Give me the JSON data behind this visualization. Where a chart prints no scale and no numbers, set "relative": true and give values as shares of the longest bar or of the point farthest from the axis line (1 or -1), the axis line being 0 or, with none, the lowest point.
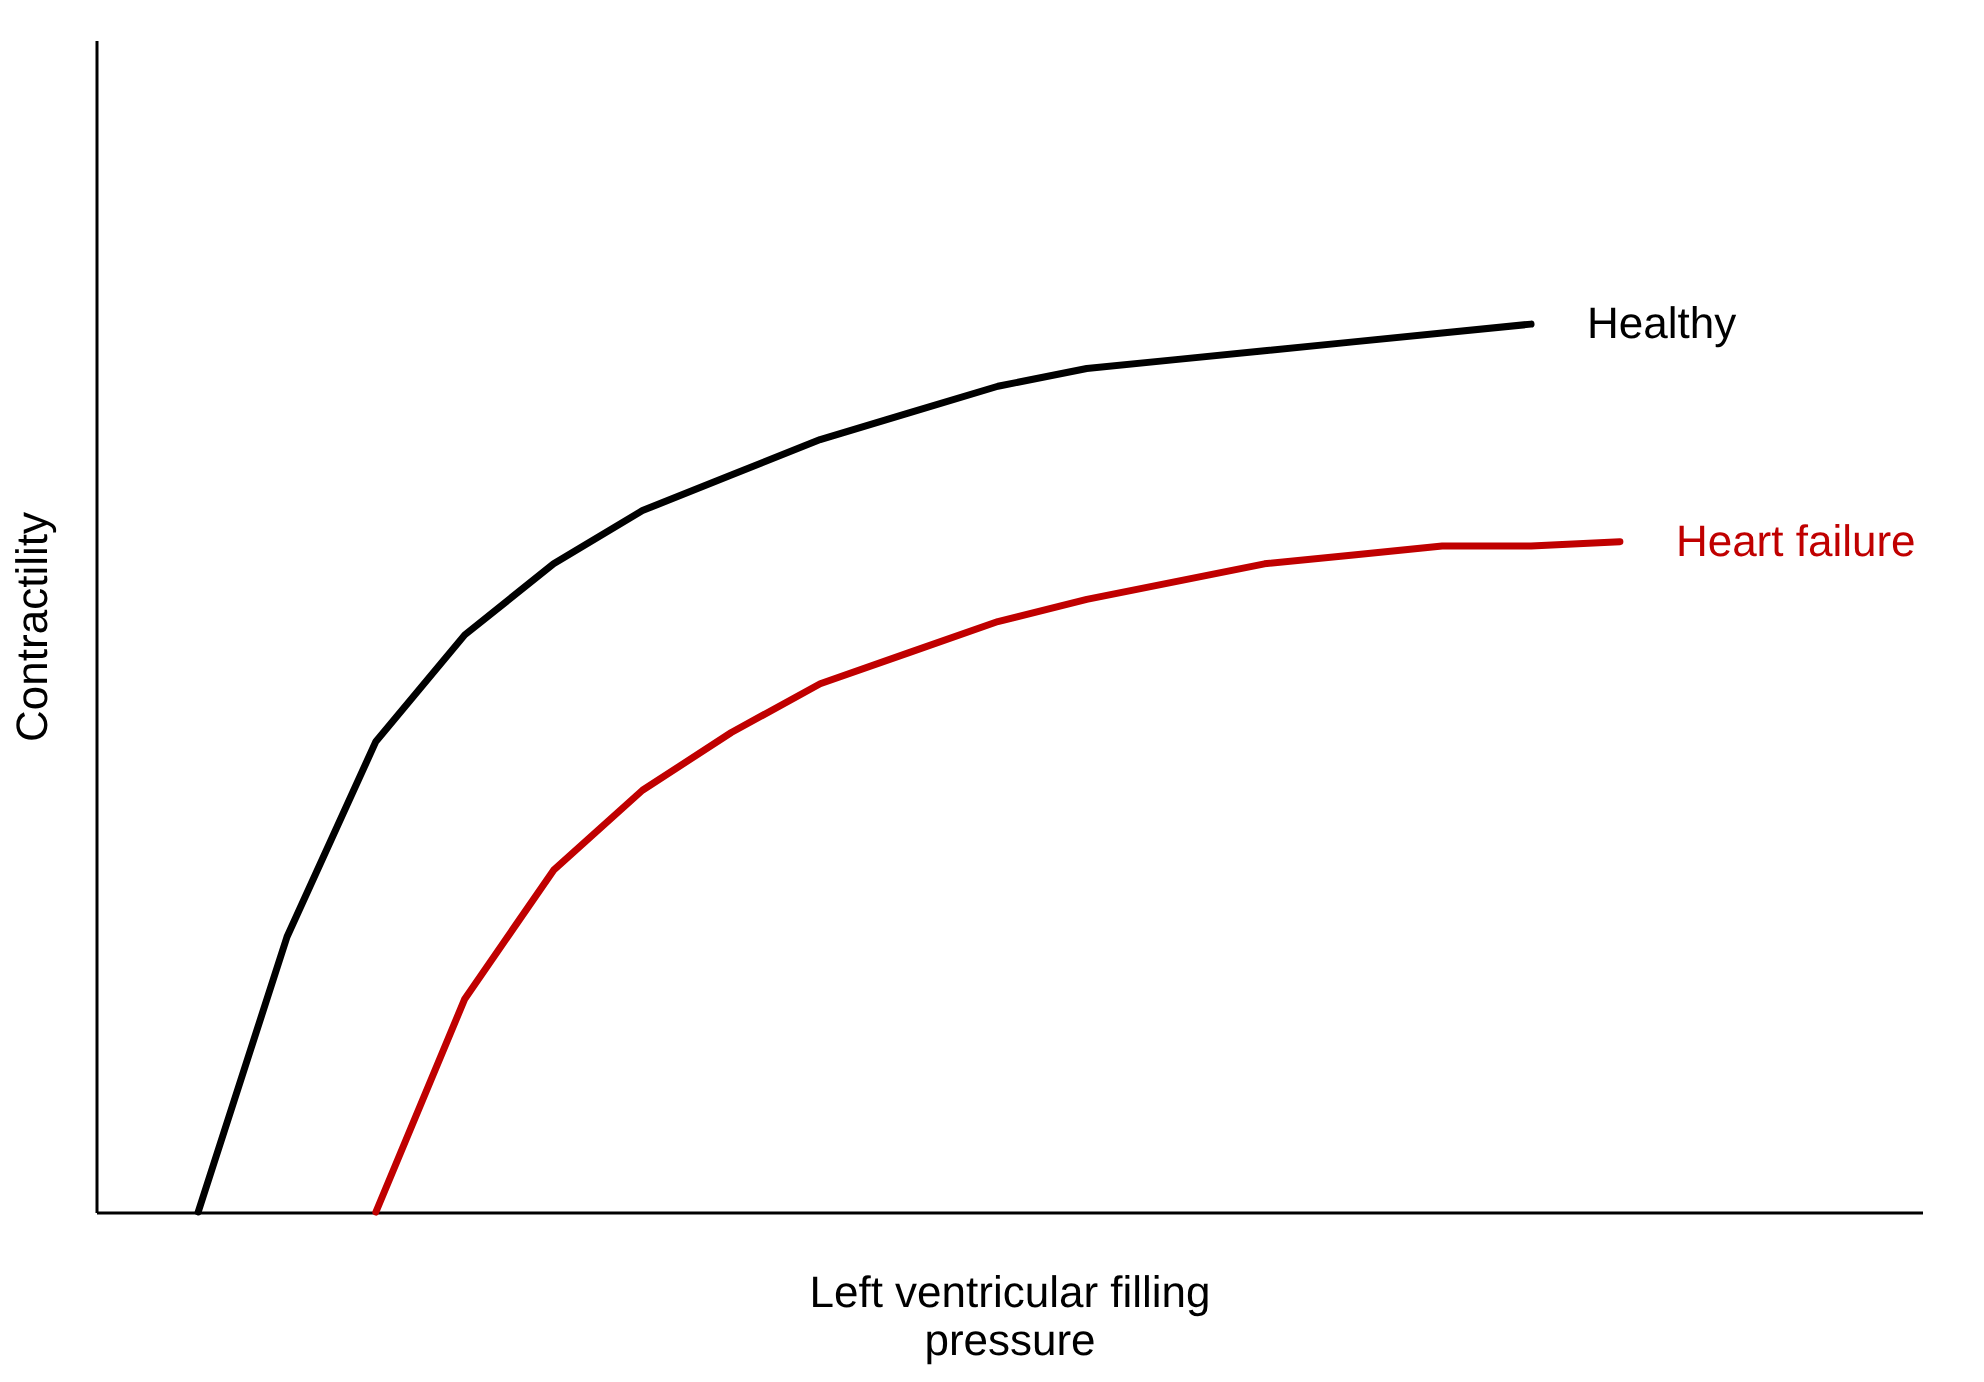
{
  "chart_data": {
    "type": "line",
    "xlabel": "Left ventricular filling pressure",
    "ylabel": "Contractility",
    "relative": true,
    "line_style": "solid",
    "categories": [
      null,
      null,
      null,
      null,
      null,
      null,
      null,
      null,
      null,
      null,
      null,
      null,
      null,
      null,
      null,
      null,
      null
    ],
    "series": [
      {
        "name": "Healthy",
        "color": "#000000",
        "values": [
          0,
          0.31,
          0.53,
          0.65,
          0.73,
          0.79,
          0.83,
          0.87,
          0.9,
          0.93,
          0.95,
          0.96,
          0.97,
          0.98,
          0.99,
          1.0,
          null
        ]
      },
      {
        "name": "Heart failure",
        "color": "#c00000",
        "values": [
          null,
          null,
          0,
          0.24,
          0.385,
          0.475,
          0.54,
          0.595,
          0.63,
          0.665,
          0.69,
          0.71,
          0.73,
          0.74,
          0.75,
          0.75,
          0.755
        ]
      }
    ]
  }
}
